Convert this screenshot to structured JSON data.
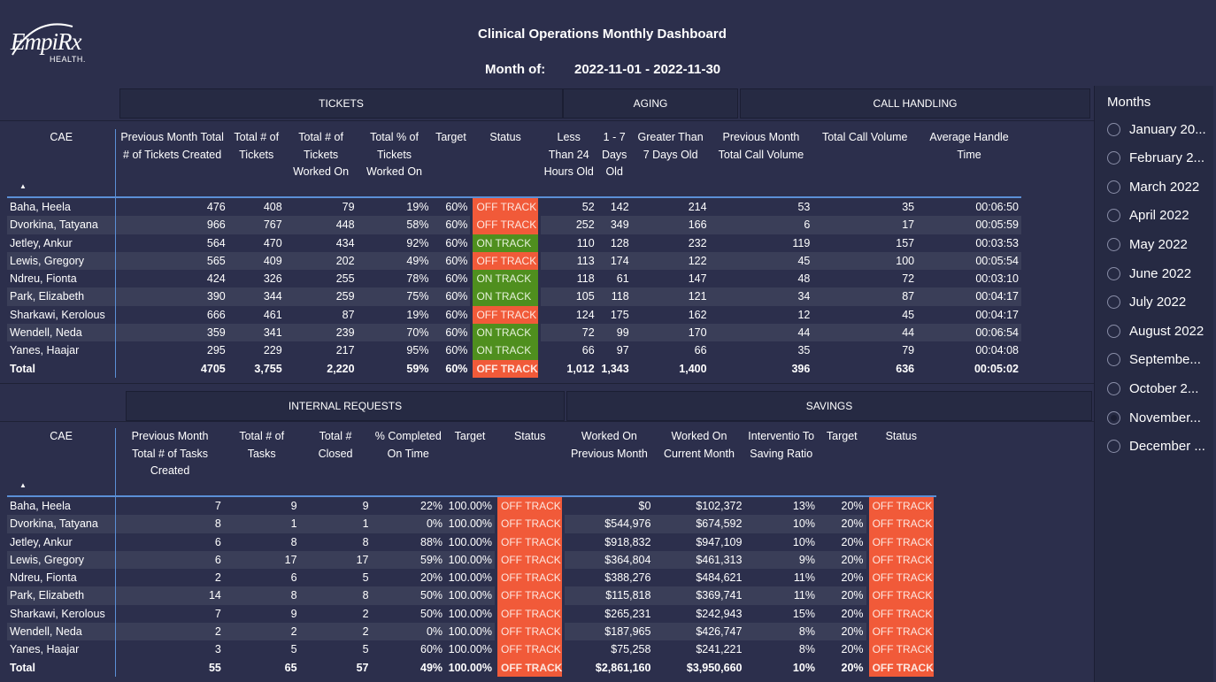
{
  "logo": {
    "text": "EmpiRx",
    "sub": "HEALTH."
  },
  "title": "Clinical Operations Monthly Dashboard",
  "month_label": "Month of:",
  "month_value": "2022-11-01 - 2022-11-30",
  "colors": {
    "background": "#2c2f4c",
    "off_track": "#f15a39",
    "on_track": "#4f8f1e",
    "accent_line": "#5b8fd6"
  },
  "tickets_section": {
    "groups": {
      "tickets": "TICKETS",
      "aging": "AGING",
      "call_handling": "CALL HANDLING"
    },
    "columns": [
      "CAE",
      "Previous Month Total # of Tickets Created",
      "Total # of Tickets",
      "Total # of Tickets Worked On",
      "Total % of Tickets Worked On",
      "Target",
      "Status",
      "Less Than 24 Hours Old",
      "1 - 7 Days Old",
      "Greater Than 7 Days Old",
      "Previous Month Total Call Volume",
      "Total Call Volume",
      "Average Handle Time"
    ],
    "rows": [
      [
        "Baha, Heela",
        "476",
        "408",
        "79",
        "19%",
        "60%",
        "OFF TRACK",
        "52",
        "142",
        "214",
        "53",
        "35",
        "00:06:50"
      ],
      [
        "Dvorkina, Tatyana",
        "966",
        "767",
        "448",
        "58%",
        "60%",
        "OFF TRACK",
        "252",
        "349",
        "166",
        "6",
        "17",
        "00:05:59"
      ],
      [
        "Jetley, Ankur",
        "564",
        "470",
        "434",
        "92%",
        "60%",
        "ON TRACK",
        "110",
        "128",
        "232",
        "119",
        "157",
        "00:03:53"
      ],
      [
        "Lewis, Gregory",
        "565",
        "409",
        "202",
        "49%",
        "60%",
        "OFF TRACK",
        "113",
        "174",
        "122",
        "45",
        "100",
        "00:05:54"
      ],
      [
        "Ndreu, Fionta",
        "424",
        "326",
        "255",
        "78%",
        "60%",
        "ON TRACK",
        "118",
        "61",
        "147",
        "48",
        "72",
        "00:03:10"
      ],
      [
        "Park, Elizabeth",
        "390",
        "344",
        "259",
        "75%",
        "60%",
        "ON TRACK",
        "105",
        "118",
        "121",
        "34",
        "87",
        "00:04:17"
      ],
      [
        "Sharkawi, Kerolous",
        "666",
        "461",
        "87",
        "19%",
        "60%",
        "OFF TRACK",
        "124",
        "175",
        "162",
        "12",
        "45",
        "00:04:17"
      ],
      [
        "Wendell, Neda",
        "359",
        "341",
        "239",
        "70%",
        "60%",
        "ON TRACK",
        "72",
        "99",
        "170",
        "44",
        "44",
        "00:06:54"
      ],
      [
        "Yanes, Haajar",
        "295",
        "229",
        "217",
        "95%",
        "60%",
        "ON TRACK",
        "66",
        "97",
        "66",
        "35",
        "79",
        "00:04:08"
      ]
    ],
    "total": [
      "Total",
      "4705",
      "3,755",
      "2,220",
      "59%",
      "60%",
      "OFF TRACK",
      "1,012",
      "1,343",
      "1,400",
      "396",
      "636",
      "00:05:02"
    ]
  },
  "requests_section": {
    "groups": {
      "internal_requests": "INTERNAL REQUESTS",
      "savings": "SAVINGS"
    },
    "columns": [
      "CAE",
      "Previous Month Total # of Tasks Created",
      "Total # of Tasks",
      "Total # Closed",
      "% Completed On Time",
      "Target",
      "Status",
      "Worked On Previous Month",
      "Worked On Current Month",
      "Interventio To Saving Ratio",
      "Target",
      "Status"
    ],
    "rows": [
      [
        "Baha, Heela",
        "7",
        "9",
        "9",
        "22%",
        "100.00%",
        "OFF TRACK",
        "$0",
        "$102,372",
        "13%",
        "20%",
        "OFF TRACK"
      ],
      [
        "Dvorkina, Tatyana",
        "8",
        "1",
        "1",
        "0%",
        "100.00%",
        "OFF TRACK",
        "$544,976",
        "$674,592",
        "10%",
        "20%",
        "OFF TRACK"
      ],
      [
        "Jetley, Ankur",
        "6",
        "8",
        "8",
        "88%",
        "100.00%",
        "OFF TRACK",
        "$918,832",
        "$947,109",
        "10%",
        "20%",
        "OFF TRACK"
      ],
      [
        "Lewis, Gregory",
        "6",
        "17",
        "17",
        "59%",
        "100.00%",
        "OFF TRACK",
        "$364,804",
        "$461,313",
        "9%",
        "20%",
        "OFF TRACK"
      ],
      [
        "Ndreu, Fionta",
        "2",
        "6",
        "5",
        "20%",
        "100.00%",
        "OFF TRACK",
        "$388,276",
        "$484,621",
        "11%",
        "20%",
        "OFF TRACK"
      ],
      [
        "Park, Elizabeth",
        "14",
        "8",
        "8",
        "50%",
        "100.00%",
        "OFF TRACK",
        "$115,818",
        "$369,741",
        "11%",
        "20%",
        "OFF TRACK"
      ],
      [
        "Sharkawi, Kerolous",
        "7",
        "9",
        "2",
        "50%",
        "100.00%",
        "OFF TRACK",
        "$265,231",
        "$242,943",
        "15%",
        "20%",
        "OFF TRACK"
      ],
      [
        "Wendell, Neda",
        "2",
        "2",
        "2",
        "0%",
        "100.00%",
        "OFF TRACK",
        "$187,965",
        "$426,747",
        "8%",
        "20%",
        "OFF TRACK"
      ],
      [
        "Yanes, Haajar",
        "3",
        "5",
        "5",
        "60%",
        "100.00%",
        "OFF TRACK",
        "$75,258",
        "$241,221",
        "8%",
        "20%",
        "OFF TRACK"
      ]
    ],
    "total": [
      "Total",
      "55",
      "65",
      "57",
      "49%",
      "100.00%",
      "OFF TRACK",
      "$2,861,160",
      "$3,950,660",
      "10%",
      "20%",
      "OFF TRACK"
    ]
  },
  "months_panel": {
    "title": "Months",
    "items": [
      "January 20...",
      "February 2...",
      "March 2022",
      "April 2022",
      "May 2022",
      "June 2022",
      "July 2022",
      "August 2022",
      "Septembe...",
      "October 2...",
      "November...",
      "December ..."
    ],
    "selected": "November..."
  }
}
